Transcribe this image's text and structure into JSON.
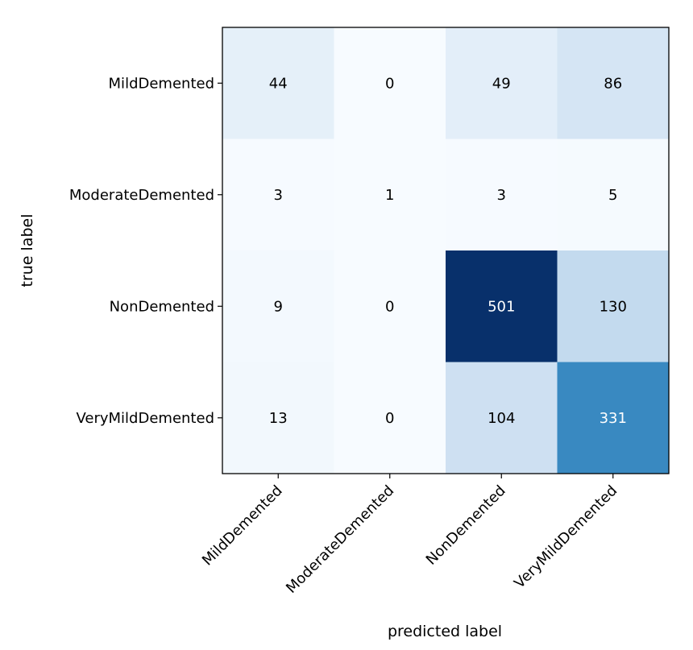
{
  "chart_data": {
    "type": "heatmap",
    "title": "",
    "xlabel": "predicted label",
    "ylabel": "true label",
    "x_categories": [
      "MildDemented",
      "ModerateDemented",
      "NonDemented",
      "VeryMildDemented"
    ],
    "y_categories": [
      "MildDemented",
      "ModerateDemented",
      "NonDemented",
      "VeryMildDemented"
    ],
    "values": [
      [
        44,
        0,
        49,
        86
      ],
      [
        3,
        1,
        3,
        5
      ],
      [
        9,
        0,
        501,
        130
      ],
      [
        13,
        0,
        104,
        331
      ]
    ],
    "colormap": "Blues",
    "colorbar": false,
    "grid": false
  }
}
